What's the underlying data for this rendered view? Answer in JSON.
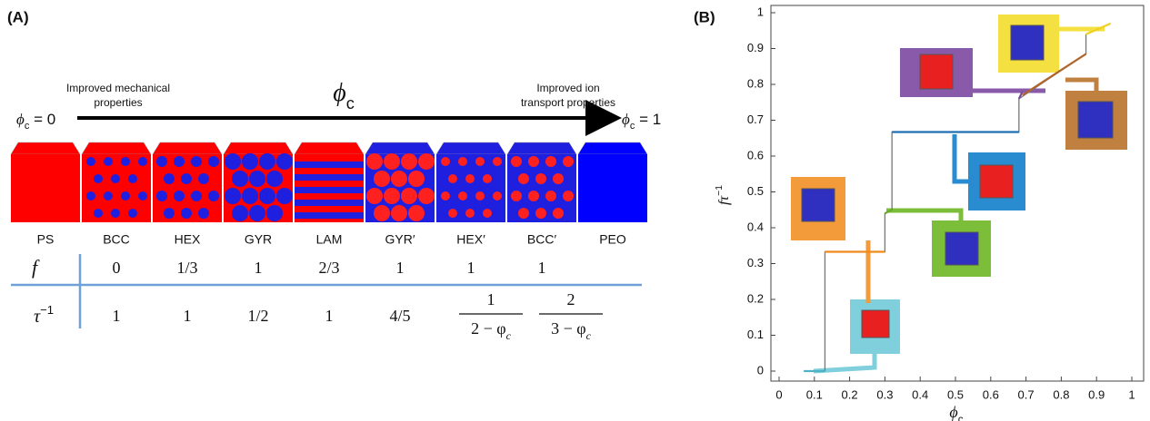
{
  "panel_a": {
    "label": "(A)",
    "left_note": [
      "Improved mechanical",
      "properties"
    ],
    "right_note": [
      "Improved ion",
      "transport properties"
    ],
    "center_symbol": {
      "symbol": "ϕ",
      "sub": "c"
    },
    "left_end": {
      "symbol": "ϕ",
      "sub": "c",
      "rest": " = 0"
    },
    "right_end": {
      "symbol": "ϕ",
      "sub": "c",
      "rest": " = 1"
    },
    "phases": [
      {
        "name": "PS",
        "color": "#ff0000",
        "dot_color": "#ff0000"
      },
      {
        "name": "BCC",
        "color": "#ff0000",
        "dot_color": "#1f1fe0"
      },
      {
        "name": "HEX",
        "color": "#ff0000",
        "dot_color": "#1f1fe0"
      },
      {
        "name": "GYR",
        "color": "#ff0000",
        "dot_color": "#1f1fe0"
      },
      {
        "name": "LAM",
        "color": "#ff0000",
        "dot_color": "#1f1fe0"
      },
      {
        "name": "GYR′",
        "color": "#1f1fe0",
        "dot_color": "#ff2020"
      },
      {
        "name": "HEX′",
        "color": "#1f1fe0",
        "dot_color": "#ff2020"
      },
      {
        "name": "BCC′",
        "color": "#1f1fe0",
        "dot_color": "#ff2020"
      },
      {
        "name": "PEO",
        "color": "#0000ff",
        "dot_color": "#0000ff"
      }
    ],
    "f_row": {
      "label": "f",
      "values": [
        "0",
        "1/3",
        "1",
        "2/3",
        "1",
        "1",
        "1"
      ]
    },
    "tau_row": {
      "label": {
        "symbol": "τ",
        "sup": "−1"
      },
      "values": [
        "1",
        "1",
        "1/2",
        "1",
        "4/5"
      ],
      "fractions": [
        {
          "numerator": "1",
          "denominator": "2 − φ",
          "sub": "c"
        },
        {
          "numerator": "2",
          "denominator": "3 − φ",
          "sub": "c"
        }
      ]
    }
  },
  "panel_b": {
    "label": "(B)"
  },
  "chart_data": {
    "type": "line",
    "xlabel": {
      "symbol": "ϕ",
      "sub": "c"
    },
    "ylabel": {
      "text": "fτ",
      "sup": "−1"
    },
    "xlim": [
      0,
      1
    ],
    "ylim": [
      0,
      1
    ],
    "xticks": [
      0,
      0.1,
      0.2,
      0.3,
      0.4,
      0.5,
      0.6,
      0.7,
      0.8,
      0.9,
      1
    ],
    "yticks": [
      0,
      0.1,
      0.2,
      0.3,
      0.4,
      0.5,
      0.6,
      0.7,
      0.8,
      0.9,
      1
    ],
    "series": [
      {
        "color": "#777777",
        "x": [
          0.13,
          0.13,
          0.3,
          0.3,
          0.32,
          0.32,
          0.68,
          0.68,
          0.87,
          0.87
        ],
        "values": [
          0,
          0.333,
          0.333,
          0.44,
          0.45,
          0.667,
          0.667,
          0.76,
          0.885,
          0.94
        ]
      },
      {
        "color": "#4fb3c8",
        "x": [
          0.07,
          0.13
        ],
        "values": [
          0,
          0
        ]
      },
      {
        "color": "#f08a1c",
        "x": [
          0.13,
          0.3
        ],
        "values": [
          0.333,
          0.333
        ]
      },
      {
        "color": "#6aaa2a",
        "x": [
          0.3,
          0.32
        ],
        "values": [
          0.44,
          0.45
        ]
      },
      {
        "color": "#1f6fb5",
        "x": [
          0.32,
          0.68
        ],
        "values": [
          0.667,
          0.667
        ]
      },
      {
        "color": "#7a4a9a",
        "x": [
          0.68,
          0.69
        ],
        "values": [
          0.76,
          0.78
        ]
      },
      {
        "color": "#b0662a",
        "x": [
          0.69,
          0.87
        ],
        "values": [
          0.77,
          0.885
        ]
      },
      {
        "color": "#f0d020",
        "x": [
          0.87,
          0.94
        ],
        "values": [
          0.94,
          0.97
        ]
      }
    ]
  }
}
